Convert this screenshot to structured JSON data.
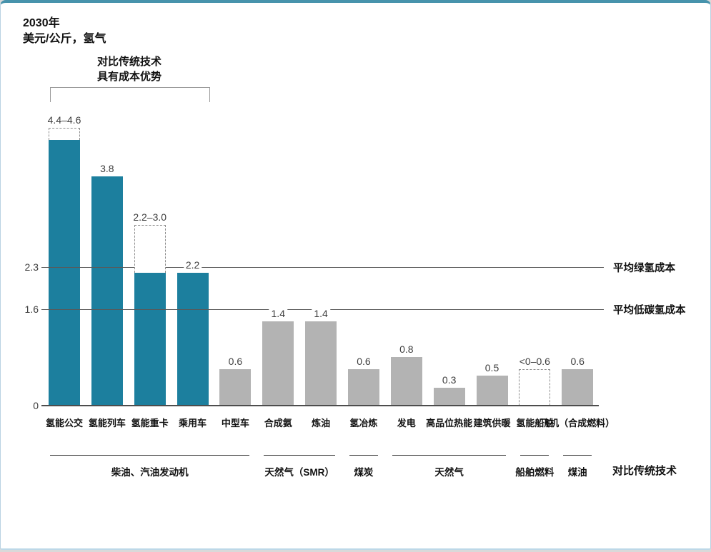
{
  "header": {
    "title": "2030年",
    "subtitle": "美元/公斤，氢气"
  },
  "colors": {
    "teal_bar": "#1c7f9e",
    "gray_bar": "#b3b3b3",
    "top_accent": "#4793ac",
    "reference_line": "#595959",
    "axis_line": "#4d4d4d",
    "dashed_outline": "#8c8c8c",
    "bracket_line": "#999999"
  },
  "chart_data": {
    "type": "bar",
    "title": "2030年",
    "ylabel": "美元/公斤，氢气",
    "ylim": [
      0,
      4.8
    ],
    "grid": false,
    "bracket": {
      "from_bar": 0,
      "to_bar": 3,
      "label_line1": "对比传统技术",
      "label_line2": "具有成本优势"
    },
    "bars": [
      {
        "label": "氢能公交",
        "solid": 4.4,
        "dashed_to": 4.6,
        "value_label": "4.4–4.6",
        "color": "teal"
      },
      {
        "label": "氢能列车",
        "solid": 3.8,
        "dashed_to": null,
        "value_label": "3.8",
        "color": "teal"
      },
      {
        "label": "氢能重卡",
        "solid": 2.2,
        "dashed_to": 3.0,
        "value_label": "2.2–3.0",
        "color": "teal"
      },
      {
        "label": "乘用车",
        "solid": 2.2,
        "dashed_to": null,
        "value_label": "2.2",
        "color": "teal"
      },
      {
        "label": "中型车",
        "solid": 0.6,
        "dashed_to": null,
        "value_label": "0.6",
        "color": "gray"
      },
      {
        "label": "合成氨",
        "solid": 1.4,
        "dashed_to": null,
        "value_label": "1.4",
        "color": "gray"
      },
      {
        "label": "炼油",
        "solid": 1.4,
        "dashed_to": null,
        "value_label": "1.4",
        "color": "gray"
      },
      {
        "label": "氢冶炼",
        "solid": 0.6,
        "dashed_to": null,
        "value_label": "0.6",
        "color": "gray"
      },
      {
        "label": "发电",
        "solid": 0.8,
        "dashed_to": null,
        "value_label": "0.8",
        "color": "gray"
      },
      {
        "label": "高品位热能",
        "solid": 0.3,
        "dashed_to": null,
        "value_label": "0.3",
        "color": "gray"
      },
      {
        "label": "建筑供暖",
        "solid": 0.5,
        "dashed_to": null,
        "value_label": "0.5",
        "color": "gray"
      },
      {
        "label": "氢能船舶",
        "solid": 0,
        "dashed_to": 0.6,
        "value_label": "<0–0.6",
        "color": "gray"
      },
      {
        "label": "飞机（合成燃料）",
        "solid": 0.6,
        "dashed_to": null,
        "value_label": "0.6",
        "color": "gray"
      }
    ],
    "reference_lines": [
      {
        "value": 2.3,
        "tick_label": "2.3",
        "name": "平均绿氢成本"
      },
      {
        "value": 1.6,
        "tick_label": "1.6",
        "name": "平均低碳氢成本"
      }
    ],
    "baseline": {
      "value": 0,
      "tick_label": "0"
    },
    "comparison_groups": [
      {
        "label": "柴油、汽油发动机",
        "from_bar": 0,
        "to_bar": 4
      },
      {
        "label": "天然气（SMR）",
        "from_bar": 5,
        "to_bar": 6
      },
      {
        "label": "煤炭",
        "from_bar": 7,
        "to_bar": 7
      },
      {
        "label": "天然气",
        "from_bar": 8,
        "to_bar": 10
      },
      {
        "label": "船舶燃料",
        "from_bar": 11,
        "to_bar": 11
      },
      {
        "label": "煤油",
        "from_bar": 12,
        "to_bar": 12
      }
    ],
    "comparison_axis_label": "对比传统技术"
  }
}
